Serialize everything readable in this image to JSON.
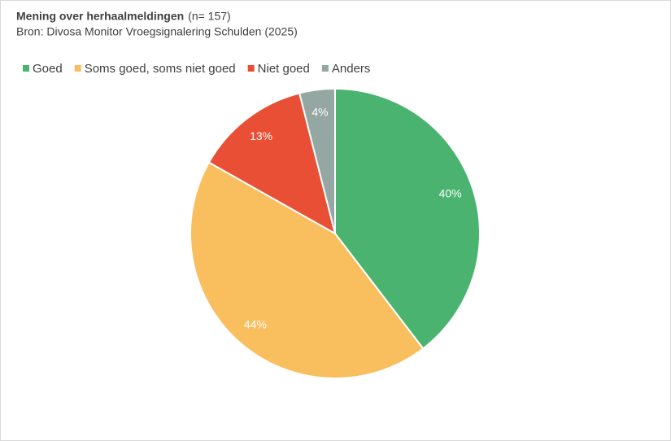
{
  "chart_data": {
    "type": "pie",
    "title": "Mening over herhaalmeldingen",
    "title_note": "(n= 157)",
    "subtitle": "Bron: Divosa Monitor Vroegsignalering Schulden (2025)",
    "categories": [
      "Goed",
      "Soms goed, soms niet goed",
      "Niet goed",
      "Anders"
    ],
    "values": [
      40,
      44,
      13,
      4
    ],
    "value_labels": [
      "40%",
      "44%",
      "13%",
      "4%"
    ],
    "colors": [
      "#4ab36f",
      "#f9be5e",
      "#e94f35",
      "#95a7a2"
    ],
    "legend": "top"
  }
}
